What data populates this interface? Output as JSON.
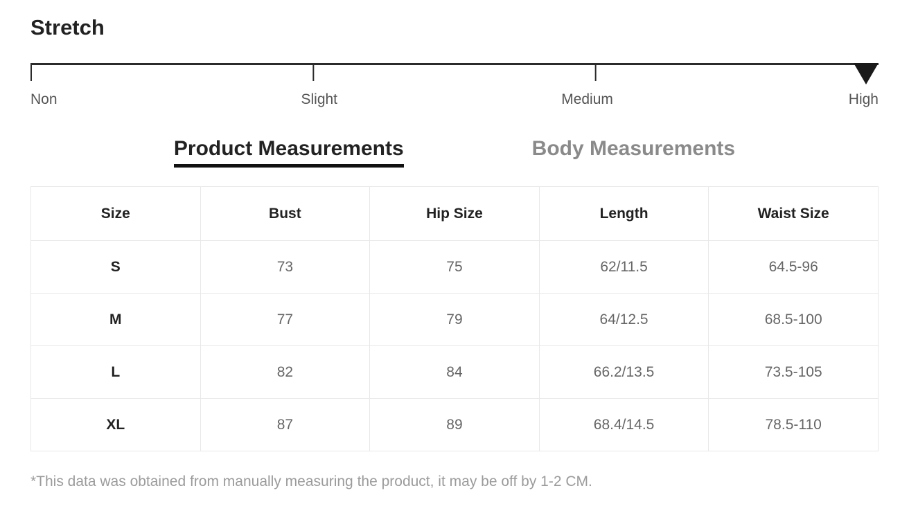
{
  "title": "Stretch",
  "stretch_scale": {
    "levels": [
      "Non",
      "Slight",
      "Medium",
      "High"
    ],
    "selected": "High",
    "selected_index": 3
  },
  "tabs": [
    {
      "label": "Product Measurements",
      "active": true
    },
    {
      "label": "Body Measurements",
      "active": false
    }
  ],
  "table": {
    "columns": [
      "Size",
      "Bust",
      "Hip Size",
      "Length",
      "Waist Size"
    ],
    "rows": [
      [
        "S",
        "73",
        "75",
        "62/11.5",
        "64.5-96"
      ],
      [
        "M",
        "77",
        "79",
        "64/12.5",
        "68.5-100"
      ],
      [
        "L",
        "82",
        "84",
        "66.2/13.5",
        "73.5-105"
      ],
      [
        "XL",
        "87",
        "89",
        "68.4/14.5",
        "78.5-110"
      ]
    ]
  },
  "footnote": "*This data was obtained from manually measuring the product, it may be off by 1-2 CM.",
  "colors": {
    "text_primary": "#222222",
    "text_secondary": "#666666",
    "text_muted": "#9b9b9b",
    "scale_label": "#555555",
    "tab_inactive": "#8a8a8a",
    "border": "#e8e8e8",
    "scale_line": "#2b2b2b",
    "marker": "#1a1a1a"
  }
}
